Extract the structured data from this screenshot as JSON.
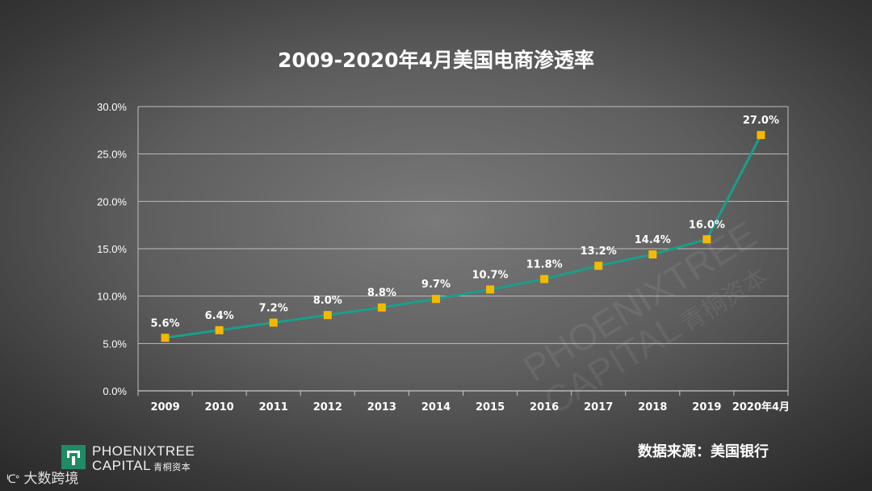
{
  "chart_data": {
    "type": "line",
    "title": "2009-2020年4月美国电商渗透率",
    "xlabel": "",
    "ylabel": "",
    "categories": [
      "2009",
      "2010",
      "2011",
      "2012",
      "2013",
      "2014",
      "2015",
      "2016",
      "2017",
      "2018",
      "2019",
      "2020年4月"
    ],
    "series": [
      {
        "values": [
          5.6,
          6.4,
          7.2,
          8.0,
          8.8,
          9.7,
          10.7,
          11.8,
          13.2,
          14.4,
          16.0,
          27.0
        ],
        "labels": [
          "5.6%",
          "6.4%",
          "7.2%",
          "8.0%",
          "8.8%",
          "9.7%",
          "10.7%",
          "11.8%",
          "13.2%",
          "14.4%",
          "16.0%",
          "27.0%"
        ]
      }
    ],
    "ylim": [
      0,
      30
    ],
    "yticks": [
      "0.0%",
      "5.0%",
      "10.0%",
      "15.0%",
      "20.0%",
      "25.0%",
      "30.0%"
    ],
    "grid": true,
    "line_color": "#1a9e8a",
    "marker_color": "#f5b800"
  },
  "logo": {
    "line1": "PHOENIXTREE",
    "line2": "CAPITAL",
    "line2_cn": "青桐资本"
  },
  "watermark": {
    "line1": "PHOENIXTREE",
    "line2": "CAPITAL",
    "line2_cn": "青桐资本"
  },
  "source_note": "数据来源：美国银行",
  "bottom_badge": {
    "icon": "ᑊᑕᐤ",
    "text": "大数跨境"
  }
}
